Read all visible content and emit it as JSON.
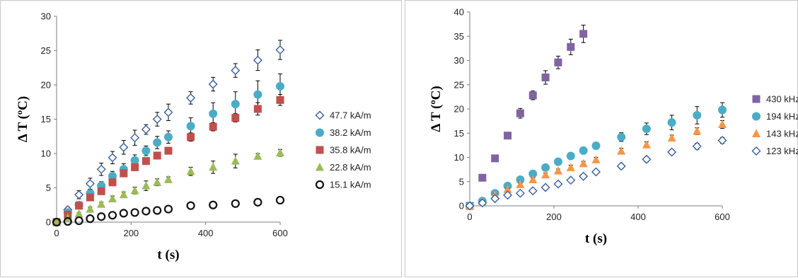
{
  "chart_data": [
    {
      "type": "scatter",
      "xlabel": "t (s)",
      "ylabel": "Δ T (ºC)",
      "xlim": [
        0,
        600
      ],
      "ylim": [
        0,
        30
      ],
      "xticks": [
        "0",
        "200",
        "400",
        "600"
      ],
      "yticks": [
        "0",
        "5",
        "10",
        "15",
        "20",
        "25",
        "30"
      ],
      "grid": false,
      "legend_position": "right",
      "x": [
        0,
        30,
        60,
        90,
        120,
        150,
        180,
        210,
        240,
        270,
        300,
        360,
        420,
        480,
        540,
        600
      ],
      "series": [
        {
          "name": "47.7 kA/m",
          "marker": "diamond-open",
          "color": "#3a5f9a",
          "values": [
            0,
            1.8,
            4.0,
            5.6,
            7.7,
            9.4,
            10.9,
            12.3,
            13.5,
            15.0,
            16.0,
            18.1,
            20.1,
            22.1,
            23.6,
            25.1
          ],
          "errors": [
            0,
            0.4,
            0.6,
            0.8,
            0.9,
            0.9,
            1.0,
            1.1,
            0.7,
            1.0,
            1.2,
            0.9,
            1.0,
            1.0,
            1.5,
            1.4
          ]
        },
        {
          "name": "38.2 kA/m",
          "marker": "circle",
          "color": "#4bacc6",
          "values": [
            0,
            1.4,
            2.5,
            4.2,
            5.3,
            6.7,
            7.7,
            9.0,
            10.4,
            11.6,
            12.4,
            14.0,
            15.8,
            17.2,
            18.6,
            19.8
          ],
          "errors": [
            0,
            0.3,
            0.4,
            0.6,
            0.6,
            0.7,
            0.8,
            0.8,
            0.7,
            0.9,
            0.9,
            1.2,
            1.6,
            1.8,
            2.0,
            1.8
          ]
        },
        {
          "name": "35.8 kA/m",
          "marker": "square",
          "color": "#c0504d",
          "values": [
            0,
            1.1,
            2.4,
            3.6,
            4.5,
            5.8,
            7.1,
            8.0,
            8.9,
            9.7,
            10.4,
            12.4,
            13.9,
            15.2,
            16.5,
            17.8
          ],
          "errors": [
            0,
            0.2,
            0.3,
            0.4,
            0.4,
            0.5,
            0.5,
            0.5,
            0.5,
            0.5,
            0.5,
            0.6,
            0.6,
            0.6,
            0.9,
            0.8
          ]
        },
        {
          "name": "22.8 kA/m",
          "marker": "triangle",
          "color": "#9bbb59",
          "values": [
            0,
            0.6,
            1.2,
            1.9,
            2.6,
            3.4,
            4.0,
            4.6,
            5.3,
            5.8,
            6.2,
            7.4,
            8.0,
            8.9,
            9.6,
            10.1
          ],
          "errors": [
            0,
            0.2,
            0.2,
            0.3,
            0.3,
            0.4,
            0.4,
            0.5,
            0.7,
            0.5,
            0.4,
            0.6,
            0.9,
            1.0,
            0.4,
            0.5
          ]
        },
        {
          "name": "15.1 kA/m",
          "marker": "circle-open",
          "color": "#111111",
          "values": [
            0,
            0.1,
            0.2,
            0.5,
            0.8,
            1.0,
            1.3,
            1.4,
            1.6,
            1.7,
            1.9,
            2.4,
            2.5,
            2.7,
            2.9,
            3.2
          ],
          "errors": [
            0,
            0,
            0,
            0,
            0,
            0,
            0,
            0,
            0,
            0,
            0,
            0,
            0,
            0,
            0,
            0
          ]
        }
      ]
    },
    {
      "type": "scatter",
      "xlabel": "t (s)",
      "ylabel": "Δ T (ºC)",
      "xlim": [
        0,
        600
      ],
      "ylim": [
        0,
        40
      ],
      "xticks": [
        "0",
        "200",
        "400",
        "600"
      ],
      "yticks": [
        "0",
        "5",
        "10",
        "15",
        "20",
        "25",
        "30",
        "35",
        "40"
      ],
      "grid": false,
      "legend_position": "right",
      "series": [
        {
          "name": "430 kHz",
          "marker": "square",
          "color": "#8064a2",
          "x": [
            0,
            30,
            60,
            90,
            120,
            150,
            180,
            210,
            240,
            270
          ],
          "values": [
            0,
            5.8,
            9.8,
            14.5,
            19.1,
            22.8,
            26.5,
            29.6,
            32.8,
            35.5
          ],
          "errors": [
            0,
            0.3,
            0.4,
            0.5,
            1.0,
            0.9,
            1.4,
            1.3,
            1.6,
            1.8
          ]
        },
        {
          "name": "194 kHz",
          "marker": "circle",
          "color": "#4bacc6",
          "x": [
            0,
            30,
            60,
            90,
            120,
            150,
            180,
            210,
            240,
            270,
            300,
            360,
            420,
            480,
            540,
            600
          ],
          "values": [
            0,
            1.0,
            2.6,
            4.1,
            5.4,
            6.6,
            7.9,
            9.1,
            10.3,
            11.4,
            12.4,
            14.2,
            15.9,
            17.2,
            18.7,
            19.8
          ],
          "errors": [
            0,
            0.2,
            0.3,
            0.4,
            0.4,
            0.5,
            0.5,
            0.5,
            0.6,
            0.7,
            0.7,
            0.9,
            1.2,
            1.5,
            1.8,
            1.5
          ]
        },
        {
          "name": "143 kHz",
          "marker": "triangle",
          "color": "#f79646",
          "x": [
            0,
            30,
            60,
            90,
            120,
            150,
            180,
            210,
            240,
            270,
            300,
            360,
            420,
            480,
            540,
            600
          ],
          "values": [
            0,
            0.9,
            2.2,
            3.4,
            4.4,
            5.4,
            6.4,
            7.2,
            7.9,
            8.7,
            9.5,
            11.3,
            12.6,
            14.0,
            15.4,
            16.8
          ],
          "errors": [
            0,
            0.2,
            0.3,
            0.3,
            0.3,
            0.4,
            0.4,
            0.4,
            0.5,
            0.5,
            0.5,
            0.6,
            0.6,
            0.6,
            0.7,
            0.8
          ]
        },
        {
          "name": "123 kHz",
          "marker": "diamond-open",
          "color": "#3a5f9a",
          "x": [
            0,
            30,
            60,
            90,
            120,
            150,
            180,
            210,
            240,
            270,
            300,
            360,
            420,
            480,
            540,
            600
          ],
          "values": [
            0,
            0.6,
            1.5,
            2.2,
            2.6,
            3.1,
            3.8,
            4.5,
            5.3,
            6.1,
            7.0,
            8.2,
            9.6,
            11.1,
            12.3,
            13.5
          ],
          "errors": [
            0,
            0.1,
            0.2,
            0.2,
            0.2,
            0.3,
            0.3,
            0.3,
            0.3,
            0.4,
            0.4,
            0.5,
            0.5,
            0.5,
            0.6,
            0.6
          ]
        }
      ]
    }
  ]
}
